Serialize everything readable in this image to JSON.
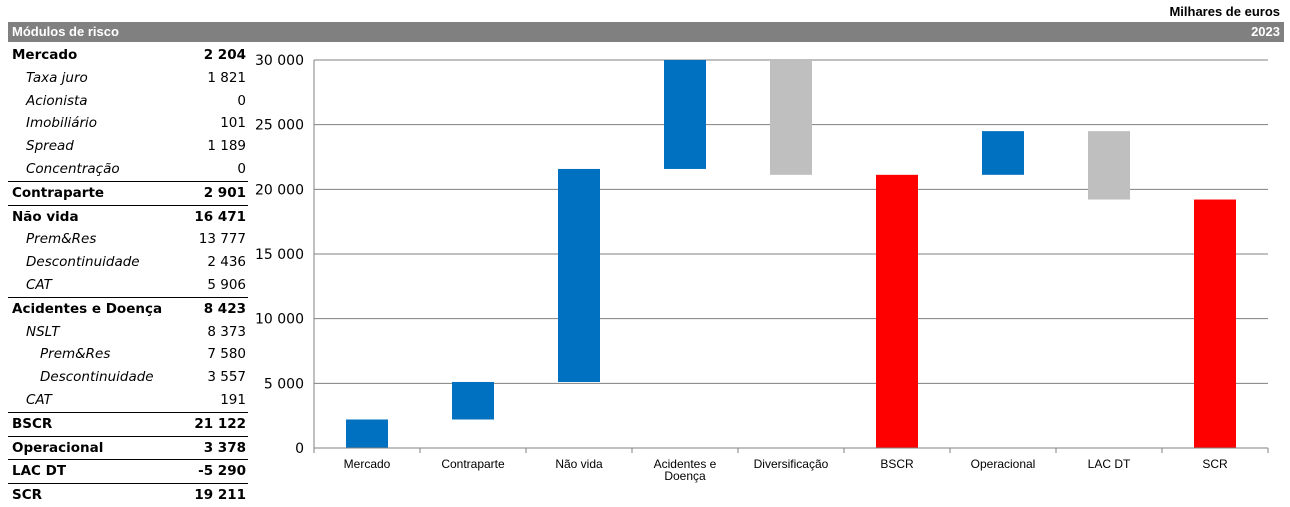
{
  "header": {
    "units": "Milhares de euros",
    "title": "Módulos de risco",
    "year": "2023"
  },
  "table": {
    "rows": [
      {
        "label": "Mercado",
        "value": "2 204",
        "level": 0,
        "border_bottom": false
      },
      {
        "label": "Taxa juro",
        "value": "1 821",
        "level": 1,
        "border_bottom": false
      },
      {
        "label": "Acionista",
        "value": "0",
        "level": 1,
        "border_bottom": false
      },
      {
        "label": "Imobiliário",
        "value": "101",
        "level": 1,
        "border_bottom": false
      },
      {
        "label": "Spread",
        "value": "1 189",
        "level": 1,
        "border_bottom": false
      },
      {
        "label": "Concentração",
        "value": "0",
        "level": 1,
        "border_bottom": true
      },
      {
        "label": "Contraparte",
        "value": "2 901",
        "level": 0,
        "border_bottom": true
      },
      {
        "label": "Não vida",
        "value": "16 471",
        "level": 0,
        "border_bottom": false
      },
      {
        "label": "Prem&Res",
        "value": "13 777",
        "level": 1,
        "border_bottom": false
      },
      {
        "label": "Descontinuidade",
        "value": "2 436",
        "level": 1,
        "border_bottom": false
      },
      {
        "label": "CAT",
        "value": "5 906",
        "level": 1,
        "border_bottom": true
      },
      {
        "label": "Acidentes e Doença",
        "value": "8 423",
        "level": 0,
        "border_bottom": false
      },
      {
        "label": "NSLT",
        "value": "8 373",
        "level": 1,
        "border_bottom": false
      },
      {
        "label": "Prem&Res",
        "value": "7 580",
        "level": 2,
        "border_bottom": false
      },
      {
        "label": "Descontinuidade",
        "value": "3 557",
        "level": 2,
        "border_bottom": false
      },
      {
        "label": "CAT",
        "value": "191",
        "level": 1,
        "border_bottom": true
      },
      {
        "label": "BSCR",
        "value": "21 122",
        "level": 0,
        "border_bottom": true
      },
      {
        "label": "Operacional",
        "value": "3 378",
        "level": 0,
        "border_bottom": true
      },
      {
        "label": "LAC DT",
        "value": "-5 290",
        "level": 0,
        "border_bottom": true
      },
      {
        "label": "SCR",
        "value": "19 211",
        "level": 0,
        "border_bottom": false
      }
    ]
  },
  "colors": {
    "blue": "#0070C0",
    "gray": "#BFBFBF",
    "red": "#FF0000",
    "header_bg": "#808080",
    "gridline": "#808080"
  },
  "chart_data": {
    "type": "bar",
    "subtype": "waterfall",
    "title": "",
    "xlabel": "",
    "ylabel": "",
    "ylim": [
      0,
      30000
    ],
    "yticks": [
      0,
      5000,
      10000,
      15000,
      20000,
      25000,
      30000
    ],
    "ytick_labels": [
      "0",
      "5 000",
      "10 000",
      "15 000",
      "20 000",
      "25 000",
      "30 000"
    ],
    "grid": true,
    "categories": [
      [
        "Mercado"
      ],
      [
        "Contraparte"
      ],
      [
        "Não vida"
      ],
      [
        "Acidentes e",
        "Doença"
      ],
      [
        "Diversificação"
      ],
      [
        "BSCR"
      ],
      [
        "Operacional"
      ],
      [
        "LAC DT"
      ],
      [
        "SCR"
      ]
    ],
    "bars": [
      {
        "bottom": 0,
        "top": 2204,
        "color": "blue"
      },
      {
        "bottom": 2204,
        "top": 5105,
        "color": "blue"
      },
      {
        "bottom": 5105,
        "top": 21576,
        "color": "blue"
      },
      {
        "bottom": 21576,
        "top": 29999,
        "color": "blue"
      },
      {
        "bottom": 21122,
        "top": 29999,
        "color": "gray"
      },
      {
        "bottom": 0,
        "top": 21122,
        "color": "red"
      },
      {
        "bottom": 21122,
        "top": 24500,
        "color": "blue"
      },
      {
        "bottom": 19211,
        "top": 24500,
        "color": "gray"
      },
      {
        "bottom": 0,
        "top": 19211,
        "color": "red"
      }
    ]
  }
}
